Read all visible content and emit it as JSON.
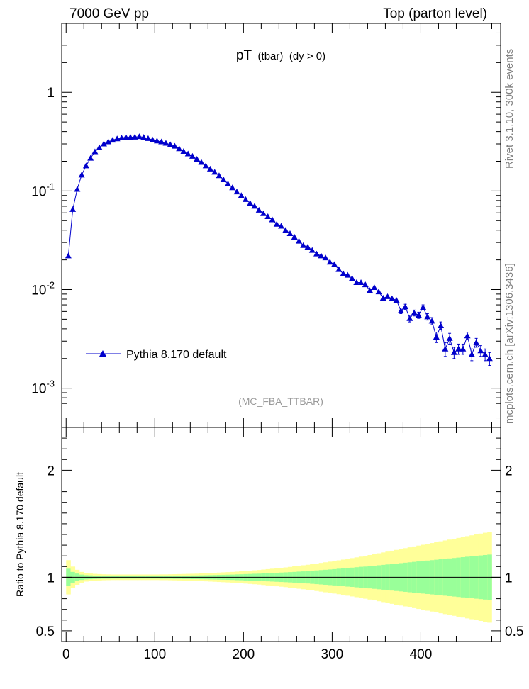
{
  "header": {
    "left": "7000 GeV pp",
    "right": "Top (parton level)"
  },
  "plot_title": {
    "main": "pT",
    "paren": "(tbar)",
    "cut": "(dy > 0)"
  },
  "analysis_tag": "(MC_FBA_TTBAR)",
  "side_labels": {
    "rivet": "Rivet 3.1.10,  300k events",
    "url": "mcplots.cern.ch [arXiv:1306.3436]"
  },
  "ratio_ylabel": "Ratio to Pythia 8.170 default",
  "colors": {
    "series": "#0000cc",
    "band_inner": "#99ff99",
    "band_outer": "#ffff99"
  },
  "chart_data": [
    {
      "type": "line",
      "scale": "log-y",
      "ylim": [
        0.0004,
        5
      ],
      "xlim": [
        -5,
        490
      ],
      "ytick_labels": [
        "10^-3",
        "10^-2",
        "10^-1",
        "1"
      ],
      "series": [
        {
          "name": "Pythia 8.170 default",
          "marker": "triangle",
          "x": [
            2.5,
            7.5,
            12.5,
            17.5,
            22.5,
            27.5,
            32.5,
            37.5,
            42.5,
            47.5,
            52.5,
            57.5,
            62.5,
            67.5,
            72.5,
            77.5,
            82.5,
            87.5,
            92.5,
            97.5,
            102.5,
            107.5,
            112.5,
            117.5,
            122.5,
            127.5,
            132.5,
            137.5,
            142.5,
            147.5,
            152.5,
            157.5,
            162.5,
            167.5,
            172.5,
            177.5,
            182.5,
            187.5,
            192.5,
            197.5,
            202.5,
            207.5,
            212.5,
            217.5,
            222.5,
            227.5,
            232.5,
            237.5,
            242.5,
            247.5,
            252.5,
            257.5,
            262.5,
            267.5,
            272.5,
            277.5,
            282.5,
            287.5,
            292.5,
            297.5,
            302.5,
            307.5,
            312.5,
            317.5,
            322.5,
            327.5,
            332.5,
            337.5,
            342.5,
            347.5,
            352.5,
            357.5,
            362.5,
            367.5,
            372.5,
            377.5,
            382.5,
            387.5,
            392.5,
            397.5,
            402.5,
            407.5,
            412.5,
            417.5,
            422.5,
            427.5,
            432.5,
            437.5,
            442.5,
            447.5,
            452.5,
            457.5,
            462.5,
            467.5,
            472.5,
            477.5
          ],
          "y": [
            0.022,
            0.064,
            0.102,
            0.145,
            0.182,
            0.218,
            0.252,
            0.28,
            0.302,
            0.32,
            0.332,
            0.342,
            0.347,
            0.35,
            0.352,
            0.355,
            0.357,
            0.355,
            0.347,
            0.338,
            0.327,
            0.318,
            0.309,
            0.298,
            0.287,
            0.272,
            0.258,
            0.243,
            0.229,
            0.213,
            0.198,
            0.184,
            0.17,
            0.157,
            0.145,
            0.133,
            0.122,
            0.112,
            0.102,
            0.093,
            0.085,
            0.078,
            0.072,
            0.066,
            0.061,
            0.056,
            0.052,
            0.048,
            0.0445,
            0.041,
            0.038,
            0.035,
            0.0322,
            0.0296,
            0.0273,
            0.0252,
            0.0234,
            0.0218,
            0.0204,
            0.019,
            0.0178,
            0.0166,
            0.0156,
            0.0147,
            0.0138,
            0.013,
            0.0122,
            0.0115,
            0.0108,
            0.0101,
            0.0095,
            0.0089,
            0.0084,
            0.0079,
            0.0074,
            0.007,
            0.0065,
            0.0061,
            0.0058,
            0.0054,
            0.0051,
            0.0048,
            0.0045,
            0.0042,
            0.004,
            0.0037,
            0.0035,
            0.0033,
            0.0031,
            0.0029,
            0.0028,
            0.0026,
            0.0024,
            0.0023,
            0.0022,
            0.002
          ],
          "yerr": [
            0.0007,
            0.0012,
            0.0015,
            0.0018,
            0.002,
            0.0022,
            0.0024,
            0.0025,
            0.0026,
            0.0027,
            0.0027,
            0.0028,
            0.0028,
            0.0028,
            0.0028,
            0.0028,
            0.0028,
            0.0028,
            0.0028,
            0.0027,
            0.0027,
            0.0027,
            0.0026,
            0.0026,
            0.0025,
            0.0024,
            0.0024,
            0.0023,
            0.0022,
            0.0022,
            0.0021,
            0.002,
            0.0019,
            0.0018,
            0.0017,
            0.0016,
            0.0015,
            0.0014,
            0.0013,
            0.0012,
            0.0012,
            0.0011,
            0.001,
            0.001,
            0.0009,
            0.0009,
            0.0008,
            0.0008,
            0.0007,
            0.0007,
            0.0007,
            0.0006,
            0.0006,
            0.0006,
            0.0005,
            0.0005,
            0.0005,
            0.0005,
            0.0005,
            0.0005,
            0.0004,
            0.0004,
            0.0004,
            0.0004,
            0.0004,
            0.0004,
            0.0004,
            0.0004,
            0.0004,
            0.0004,
            0.0004,
            0.0004,
            0.0004,
            0.0004,
            0.0004,
            0.0004,
            0.0004,
            0.0004,
            0.0004,
            0.0004,
            0.0004,
            0.0004,
            0.0004,
            0.0004,
            0.0004,
            0.0004,
            0.0004,
            0.0003,
            0.0003,
            0.0003,
            0.0003,
            0.0003,
            0.0003,
            0.0003,
            0.0003,
            0.0003
          ],
          "y_obs": [
            0.022,
            0.065,
            0.104,
            0.145,
            0.18,
            0.215,
            0.25,
            0.275,
            0.3,
            0.315,
            0.328,
            0.338,
            0.345,
            0.35,
            0.35,
            0.352,
            0.356,
            0.35,
            0.34,
            0.33,
            0.322,
            0.315,
            0.305,
            0.295,
            0.285,
            0.268,
            0.252,
            0.238,
            0.225,
            0.21,
            0.195,
            0.18,
            0.167,
            0.155,
            0.143,
            0.13,
            0.118,
            0.108,
            0.098,
            0.09,
            0.082,
            0.075,
            0.07,
            0.064,
            0.059,
            0.055,
            0.051,
            0.046,
            0.044,
            0.04,
            0.037,
            0.034,
            0.031,
            0.028,
            0.027,
            0.025,
            0.023,
            0.022,
            0.021,
            0.019,
            0.018,
            0.016,
            0.0145,
            0.014,
            0.013,
            0.0118,
            0.0118,
            0.0112,
            0.0098,
            0.0105,
            0.0095,
            0.0082,
            0.0085,
            0.0081,
            0.0078,
            0.0061,
            0.0067,
            0.0051,
            0.0058,
            0.0055,
            0.0066,
            0.0053,
            0.0048,
            0.0033,
            0.0043,
            0.0025,
            0.0032,
            0.0023,
            0.0025,
            0.0025,
            0.0034,
            0.0022,
            0.0029,
            0.0024,
            0.0022,
            0.002
          ]
        }
      ]
    },
    {
      "type": "area",
      "title": "ratio",
      "ylim": [
        0.4,
        2.4
      ],
      "ytick_labels": [
        "0.5",
        "1",
        "2"
      ],
      "xtick_labels": [
        "0",
        "100",
        "200",
        "300",
        "400"
      ],
      "band_inner_halfwidth": [
        0.08,
        0.05,
        0.035,
        0.025,
        0.02,
        0.018,
        0.016,
        0.015,
        0.014,
        0.014,
        0.013,
        0.013,
        0.013,
        0.013,
        0.013,
        0.013,
        0.013,
        0.013,
        0.013,
        0.013,
        0.013,
        0.014,
        0.014,
        0.014,
        0.015,
        0.015,
        0.016,
        0.016,
        0.017,
        0.017,
        0.018,
        0.019,
        0.02,
        0.021,
        0.022,
        0.023,
        0.024,
        0.025,
        0.027,
        0.028,
        0.03,
        0.031,
        0.033,
        0.034,
        0.036,
        0.038,
        0.04,
        0.042,
        0.044,
        0.046,
        0.048,
        0.05,
        0.053,
        0.055,
        0.058,
        0.061,
        0.064,
        0.067,
        0.07,
        0.073,
        0.076,
        0.08,
        0.083,
        0.087,
        0.09,
        0.094,
        0.098,
        0.1,
        0.104,
        0.108,
        0.112,
        0.116,
        0.12,
        0.124,
        0.128,
        0.132,
        0.136,
        0.14,
        0.144,
        0.148,
        0.152,
        0.156,
        0.16,
        0.164,
        0.168,
        0.172,
        0.176,
        0.18,
        0.184,
        0.188,
        0.192,
        0.196,
        0.2,
        0.204,
        0.208,
        0.212
      ],
      "band_outer_halfwidth": [
        0.16,
        0.1,
        0.07,
        0.05,
        0.04,
        0.035,
        0.032,
        0.03,
        0.028,
        0.027,
        0.026,
        0.026,
        0.026,
        0.026,
        0.026,
        0.026,
        0.026,
        0.026,
        0.026,
        0.026,
        0.026,
        0.027,
        0.027,
        0.028,
        0.029,
        0.03,
        0.031,
        0.032,
        0.033,
        0.034,
        0.036,
        0.038,
        0.04,
        0.042,
        0.044,
        0.046,
        0.048,
        0.05,
        0.053,
        0.056,
        0.059,
        0.062,
        0.065,
        0.068,
        0.072,
        0.076,
        0.08,
        0.084,
        0.088,
        0.092,
        0.097,
        0.102,
        0.107,
        0.112,
        0.117,
        0.122,
        0.128,
        0.134,
        0.14,
        0.146,
        0.152,
        0.158,
        0.165,
        0.172,
        0.179,
        0.186,
        0.193,
        0.2,
        0.208,
        0.216,
        0.224,
        0.232,
        0.24,
        0.248,
        0.256,
        0.264,
        0.272,
        0.28,
        0.288,
        0.296,
        0.304,
        0.312,
        0.32,
        0.328,
        0.336,
        0.344,
        0.352,
        0.36,
        0.368,
        0.376,
        0.384,
        0.392,
        0.4,
        0.408,
        0.416,
        0.424
      ]
    }
  ]
}
